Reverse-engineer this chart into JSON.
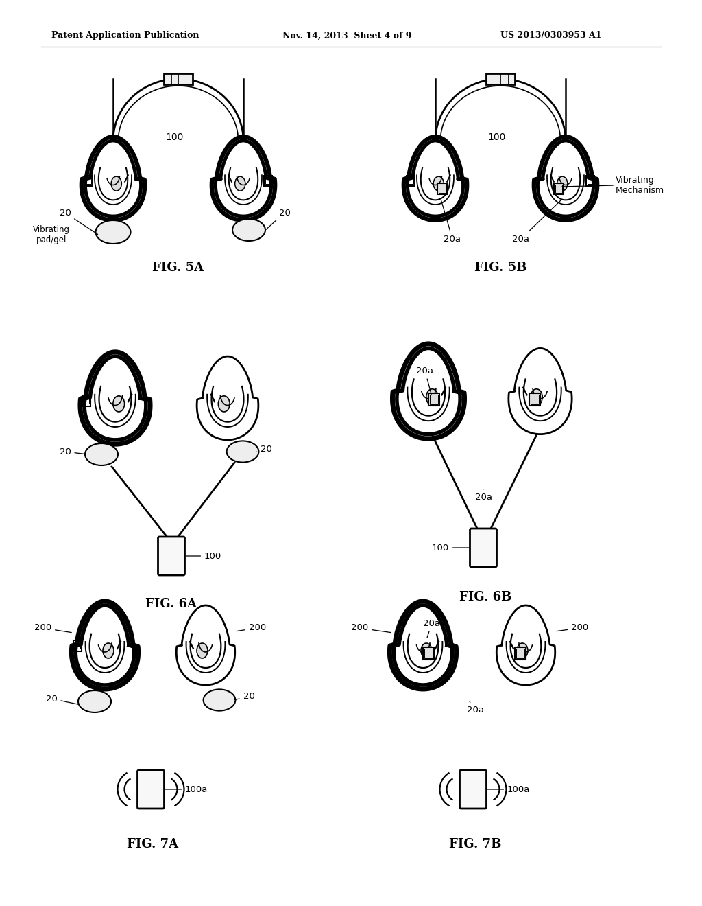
{
  "header_left": "Patent Application Publication",
  "header_mid": "Nov. 14, 2013  Sheet 4 of 9",
  "header_right": "US 2013/0303953 A1",
  "fig5a_label": "FIG. 5A",
  "fig5b_label": "FIG. 5B",
  "fig6a_label": "FIG. 6A",
  "fig6b_label": "FIG. 6B",
  "fig7a_label": "FIG. 7A",
  "fig7b_label": "FIG. 7B",
  "bg_color": "#ffffff",
  "line_color": "#000000"
}
